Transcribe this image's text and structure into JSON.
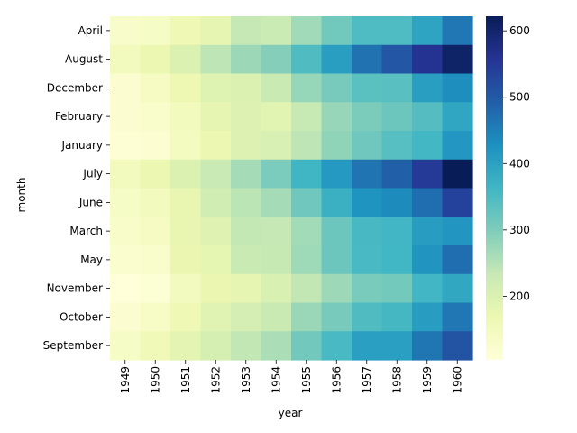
{
  "chart_data": {
    "type": "heatmap",
    "xlabel": "year",
    "ylabel": "month",
    "x": [
      "1949",
      "1950",
      "1951",
      "1952",
      "1953",
      "1954",
      "1955",
      "1956",
      "1957",
      "1958",
      "1959",
      "1960"
    ],
    "y": [
      "April",
      "August",
      "December",
      "February",
      "January",
      "July",
      "June",
      "March",
      "May",
      "November",
      "October",
      "September"
    ],
    "values": [
      [
        129,
        135,
        163,
        181,
        235,
        227,
        269,
        313,
        348,
        348,
        396,
        461
      ],
      [
        148,
        170,
        199,
        242,
        272,
        293,
        347,
        405,
        467,
        505,
        559,
        606
      ],
      [
        118,
        140,
        166,
        194,
        201,
        229,
        278,
        306,
        336,
        337,
        405,
        432
      ],
      [
        118,
        126,
        150,
        180,
        196,
        188,
        233,
        277,
        301,
        318,
        342,
        391
      ],
      [
        112,
        115,
        145,
        171,
        196,
        204,
        242,
        284,
        315,
        340,
        360,
        417
      ],
      [
        148,
        170,
        199,
        230,
        264,
        302,
        364,
        413,
        465,
        491,
        548,
        622
      ],
      [
        135,
        149,
        178,
        218,
        243,
        264,
        315,
        374,
        422,
        435,
        472,
        535
      ],
      [
        132,
        141,
        178,
        193,
        236,
        235,
        267,
        317,
        356,
        362,
        406,
        419
      ],
      [
        121,
        125,
        172,
        183,
        229,
        234,
        270,
        318,
        355,
        363,
        420,
        472
      ],
      [
        104,
        114,
        146,
        172,
        180,
        203,
        237,
        271,
        305,
        310,
        362,
        390
      ],
      [
        119,
        133,
        162,
        191,
        211,
        229,
        274,
        306,
        347,
        359,
        407,
        461
      ],
      [
        136,
        158,
        184,
        209,
        237,
        259,
        312,
        355,
        404,
        404,
        463,
        508
      ]
    ],
    "colorbar": {
      "min": 104,
      "max": 622,
      "ticks": [
        200,
        300,
        400,
        500,
        600
      ],
      "colormap": "YlGnBu"
    }
  }
}
